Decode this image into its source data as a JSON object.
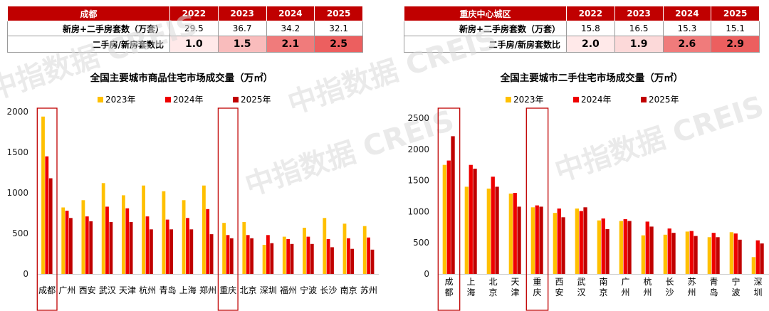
{
  "table_left": {
    "header": [
      "成都",
      "2022",
      "2023",
      "2024",
      "2025"
    ],
    "row1": {
      "label": "新房+二手房套数（万套）",
      "values": [
        "29.5",
        "36.7",
        "34.2",
        "32.1"
      ]
    },
    "row2": {
      "label": "二手房/新房套数比",
      "values": [
        "1.0",
        "1.5",
        "2.1",
        "2.5"
      ],
      "colors": [
        "#ffe9e9",
        "#f9bcbc",
        "#f07b7b",
        "#ec5f5f"
      ]
    }
  },
  "table_right": {
    "header": [
      "重庆中心城区",
      "2022",
      "2023",
      "2024",
      "2025"
    ],
    "row1": {
      "label": "新房+二手房套数（万套）",
      "values": [
        "15.8",
        "16.5",
        "15.3",
        "15.1"
      ]
    },
    "row2": {
      "label": "二手房/新房套数比",
      "values": [
        "2.0",
        "1.9",
        "2.6",
        "2.9"
      ],
      "colors": [
        "#ffe9e9",
        "#fcd9d9",
        "#f07b7b",
        "#ec5f5f"
      ]
    }
  },
  "watermark": "中指数据 CREIS",
  "series_colors": {
    "2023年": "#ffc000",
    "2024年": "#ee0000",
    "2025年": "#c00000"
  },
  "highlight_color": "#c00000",
  "chart_data": [
    {
      "type": "bar",
      "title": "全国主要城市商品住宅市场成交量（万㎡）",
      "categories": [
        "成都",
        "广州",
        "西安",
        "武汉",
        "天津",
        "杭州",
        "青岛",
        "上海",
        "郑州",
        "重庆",
        "北京",
        "深圳",
        "福州",
        "宁波",
        "长沙",
        "南京",
        "苏州"
      ],
      "series": [
        {
          "name": "2023年",
          "values": [
            1940,
            820,
            910,
            1120,
            970,
            1090,
            1020,
            910,
            1090,
            630,
            640,
            360,
            460,
            570,
            690,
            620,
            590
          ]
        },
        {
          "name": "2024年",
          "values": [
            1450,
            780,
            710,
            830,
            810,
            710,
            670,
            690,
            800,
            480,
            480,
            480,
            430,
            460,
            430,
            440,
            450
          ]
        },
        {
          "name": "2025年",
          "values": [
            1180,
            690,
            650,
            640,
            640,
            550,
            550,
            550,
            490,
            440,
            440,
            380,
            370,
            370,
            330,
            310,
            300
          ]
        }
      ],
      "ylim": [
        0,
        2000
      ],
      "yticks": [
        0,
        500,
        1000,
        1500,
        2000
      ],
      "highlight": [
        "成都",
        "重庆"
      ],
      "legend": "top"
    },
    {
      "type": "bar",
      "title": "全国主要城市二手住宅市场成交量（万㎡）",
      "categories": [
        "成都",
        "上海",
        "北京",
        "天津",
        "重庆",
        "西安",
        "武汉",
        "南京",
        "广州",
        "杭州",
        "长沙",
        "苏州",
        "青岛",
        "宁波",
        "深圳"
      ],
      "series": [
        {
          "name": "2023年",
          "values": [
            1750,
            1400,
            1370,
            1290,
            1070,
            980,
            1050,
            860,
            850,
            620,
            630,
            680,
            590,
            670,
            270
          ]
        },
        {
          "name": "2024年",
          "values": [
            1820,
            1750,
            1560,
            1300,
            1100,
            1050,
            1010,
            890,
            880,
            840,
            730,
            690,
            660,
            650,
            540
          ]
        },
        {
          "name": "2025年",
          "values": [
            2210,
            1690,
            1400,
            1080,
            1080,
            910,
            1070,
            720,
            850,
            760,
            660,
            610,
            590,
            550,
            490
          ]
        }
      ],
      "ylim": [
        0,
        2500
      ],
      "yticks": [
        0,
        500,
        1000,
        1500,
        2000,
        2500
      ],
      "highlight": [
        "成都",
        "重庆"
      ],
      "legend": "top"
    }
  ]
}
